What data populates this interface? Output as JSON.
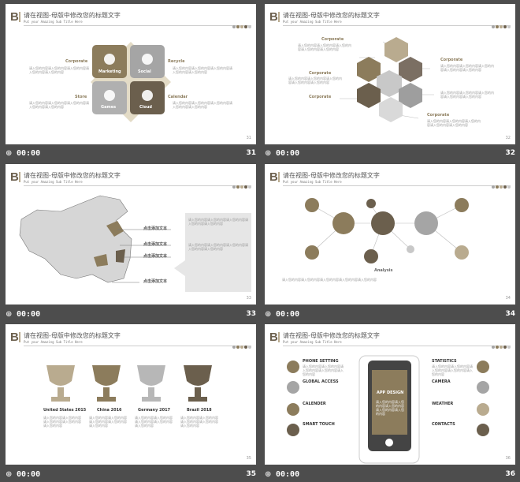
{
  "header": {
    "title": "请在视图-母版中修改您的标题文字",
    "subtitle": "Put your Amazing Sub Title Here",
    "logo": "B"
  },
  "filler": "请入您的内容请入您的内容请入您的内容请入您的内容请入您的内容",
  "dots": [
    "#a5a5a5",
    "#8c7c5c",
    "#b9ab8f",
    "#6b5f4d",
    "#c8c8c8"
  ],
  "slides": [
    {
      "num": "31",
      "time": "00:00",
      "left_labels": [
        "Corporate",
        "Store"
      ],
      "right_labels": [
        "Recycle",
        "Calendar"
      ],
      "tiles": [
        "Marketing",
        "Social",
        "Games",
        "Cloud"
      ]
    },
    {
      "num": "32",
      "time": "00:00",
      "labels": [
        "Corporate",
        "Corporate",
        "Corporate",
        "Corporate",
        "Corporate"
      ]
    },
    {
      "num": "33",
      "time": "00:00",
      "map_labels": [
        "点击添加文本",
        "点击添加文本",
        "点击添加文本",
        "点击添加文本"
      ]
    },
    {
      "num": "34",
      "time": "00:00",
      "center": "Analysis"
    },
    {
      "num": "35",
      "time": "00:00",
      "trophies": [
        "United States 2015",
        "China 2016",
        "Germany 2017",
        "Brazil 2018"
      ]
    },
    {
      "num": "36",
      "time": "00:00",
      "left": [
        "PHONE SETTING",
        "GLOBAL ACCESS",
        "CALENDER",
        "SMART TOUCH"
      ],
      "right": [
        "STATISTICS",
        "CAMERA",
        "WEATHER",
        "CONTACTS"
      ],
      "app": "APP DESIGN"
    }
  ]
}
